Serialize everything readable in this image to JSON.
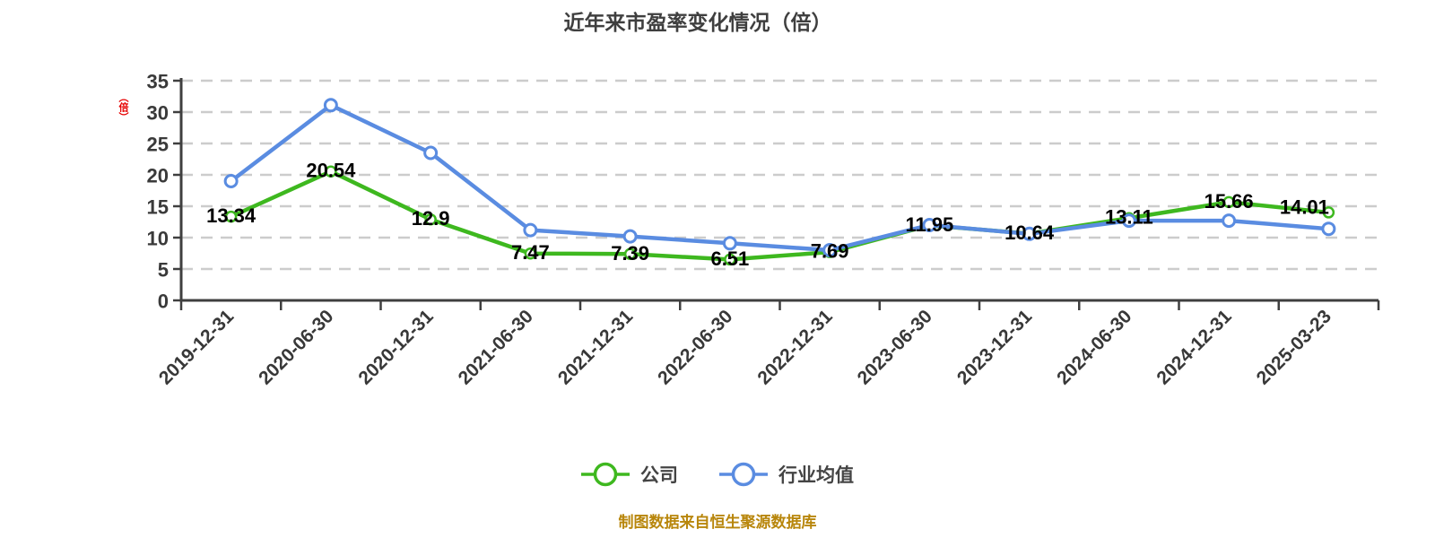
{
  "title": "近年来市盈率变化情况（倍）",
  "y_axis": {
    "unit": "（倍）",
    "ticks": [
      0,
      5,
      10,
      15,
      20,
      25,
      30,
      35
    ],
    "max": 35
  },
  "chart_data": {
    "type": "line",
    "title": "近年来市盈率变化情况（倍）",
    "xlabel": "",
    "ylabel": "（倍）",
    "ylim": [
      0,
      35
    ],
    "yticks": [
      0,
      5,
      10,
      15,
      20,
      25,
      30,
      35
    ],
    "grid": "horizontal-dashed",
    "legend_position": "bottom-center",
    "categories": [
      "2019-12-31",
      "2020-06-30",
      "2020-12-31",
      "2021-06-30",
      "2021-12-31",
      "2022-06-30",
      "2022-12-31",
      "2023-06-30",
      "2023-12-31",
      "2024-06-30",
      "2024-12-31",
      "2025-03-23"
    ],
    "series": [
      {
        "name": "公司",
        "color": "#3eb81f",
        "show_labels": true,
        "values": [
          13.34,
          20.54,
          12.9,
          7.47,
          7.39,
          6.51,
          7.69,
          11.95,
          10.64,
          13.11,
          15.66,
          14.01
        ]
      },
      {
        "name": "行业均值",
        "color": "#5a8ce1",
        "show_labels": false,
        "values": [
          19.0,
          31.1,
          23.5,
          11.2,
          10.2,
          9.1,
          8.0,
          12.0,
          10.6,
          12.7,
          12.7,
          11.4
        ]
      }
    ]
  },
  "legend": {
    "items": [
      {
        "label": "公司",
        "color": "#3eb81f"
      },
      {
        "label": "行业均值",
        "color": "#5a8ce1"
      }
    ]
  },
  "footer": {
    "source_note": "制图数据来自恒生聚源数据库"
  },
  "colors": {
    "axis": "#3f3f3f",
    "grid": "#cccccc",
    "tick_text": "#3a3a3a",
    "x_label_text": "#383838",
    "data_label": "#000000",
    "title": "#3f3f3f",
    "footer": "#b8860b",
    "unit": "#e60000",
    "marker_fill": "#ffffff"
  }
}
